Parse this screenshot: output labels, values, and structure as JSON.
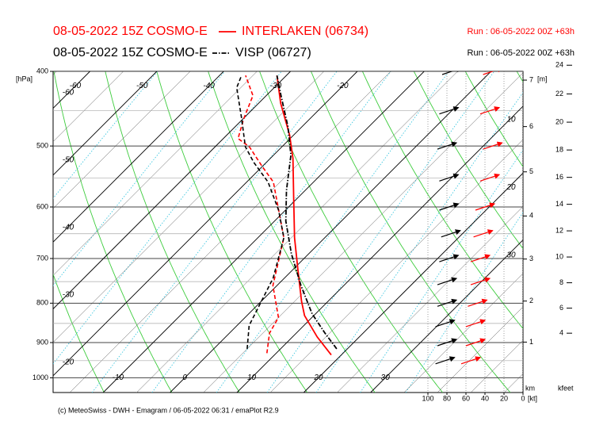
{
  "chart_data": {
    "type": "emagram",
    "y_label": "[hPa]",
    "yticks": [
      400,
      500,
      600,
      700,
      800,
      900,
      1000
    ],
    "yticks_minor": [
      450,
      550,
      650,
      750,
      850,
      950
    ],
    "ylim": [
      400,
      1045
    ],
    "log_y": true,
    "xlim": [
      -19.7,
      50.6
    ],
    "xticks_top": [
      -60,
      -50,
      -40,
      -30,
      -20
    ],
    "xticks_bottom": [
      -10,
      0,
      10,
      20,
      30
    ],
    "adiabat_labels": [
      -60,
      -50,
      -40,
      -30,
      -20
    ],
    "side_labels": [
      10,
      20,
      30
    ],
    "height_label": "[m]",
    "km_label": "km",
    "km_ticks": [
      1,
      2,
      3,
      4,
      5,
      6,
      7
    ],
    "kfeet_label": "kfeet",
    "kfeet_ticks": [
      4,
      6,
      8,
      10,
      12,
      14,
      16,
      18,
      20,
      22,
      24
    ],
    "wind_label": "[kt]",
    "wind_xlim": [
      0,
      100
    ],
    "wind_ticks": [
      100,
      80,
      60,
      40,
      20,
      0
    ],
    "wind_pressure": [
      950,
      900,
      850,
      800,
      750,
      700,
      650,
      600,
      550,
      500,
      450,
      400
    ],
    "series": [
      {
        "title": "08-05-2022 15Z COSMO-E",
        "name": "INTERLAKEN (06734)",
        "run": "Run : 06-05-2022 00Z +63h",
        "color": "#ff0000",
        "line_style": "solid",
        "pressure": [
          934,
          885,
          830,
          795,
          723,
          658,
          584,
          519,
          484,
          440,
          405
        ],
        "temperature": [
          18.5,
          13.7,
          8.6,
          6.0,
          0.7,
          -4.5,
          -10.6,
          -16.6,
          -20.6,
          -26.7,
          -31.4
        ],
        "dewpoint_pressure": [
          929,
          875,
          835,
          759,
          658,
          557,
          531,
          501,
          489,
          461,
          430,
          405
        ],
        "dewpoint": [
          8.6,
          6.0,
          5.0,
          -0.6,
          -6.1,
          -16.0,
          -20.1,
          -24.9,
          -27.8,
          -29.9,
          -32.0,
          -36.1
        ],
        "wind_speed": [
          45,
          40,
          40,
          38,
          35,
          35,
          32,
          30,
          25,
          22,
          25,
          22
        ]
      },
      {
        "title": "08-05-2022 15Z COSMO-E",
        "name": "VISP (06727)",
        "run": "Run : 06-05-2022 00Z +63h",
        "color": "#000000",
        "line_style": "dashdot",
        "pressure": [
          917,
          875,
          826,
          759,
          690,
          626,
          571,
          514,
          472,
          430,
          405
        ],
        "temperature": [
          18.4,
          14.3,
          9.5,
          3.6,
          -2.6,
          -8.3,
          -12.8,
          -17.4,
          -22.1,
          -27.8,
          -31.4
        ],
        "dewpoint_pressure": [
          917,
          855,
          814,
          742,
          658,
          606,
          557,
          525,
          501,
          461,
          420,
          405
        ],
        "dewpoint": [
          5.0,
          1.8,
          0.6,
          -1.7,
          -6.1,
          -11.0,
          -16.8,
          -21.9,
          -25.5,
          -30.2,
          -35.6,
          -36.7
        ],
        "wind_speed": [
          72,
          70,
          72,
          70,
          70,
          68,
          66,
          68,
          68,
          70,
          68,
          65
        ]
      }
    ],
    "footer": "(c) MeteoSwiss - DWH - Emagram / 06-05-2022  06:31  / emaPlot R2.9"
  }
}
